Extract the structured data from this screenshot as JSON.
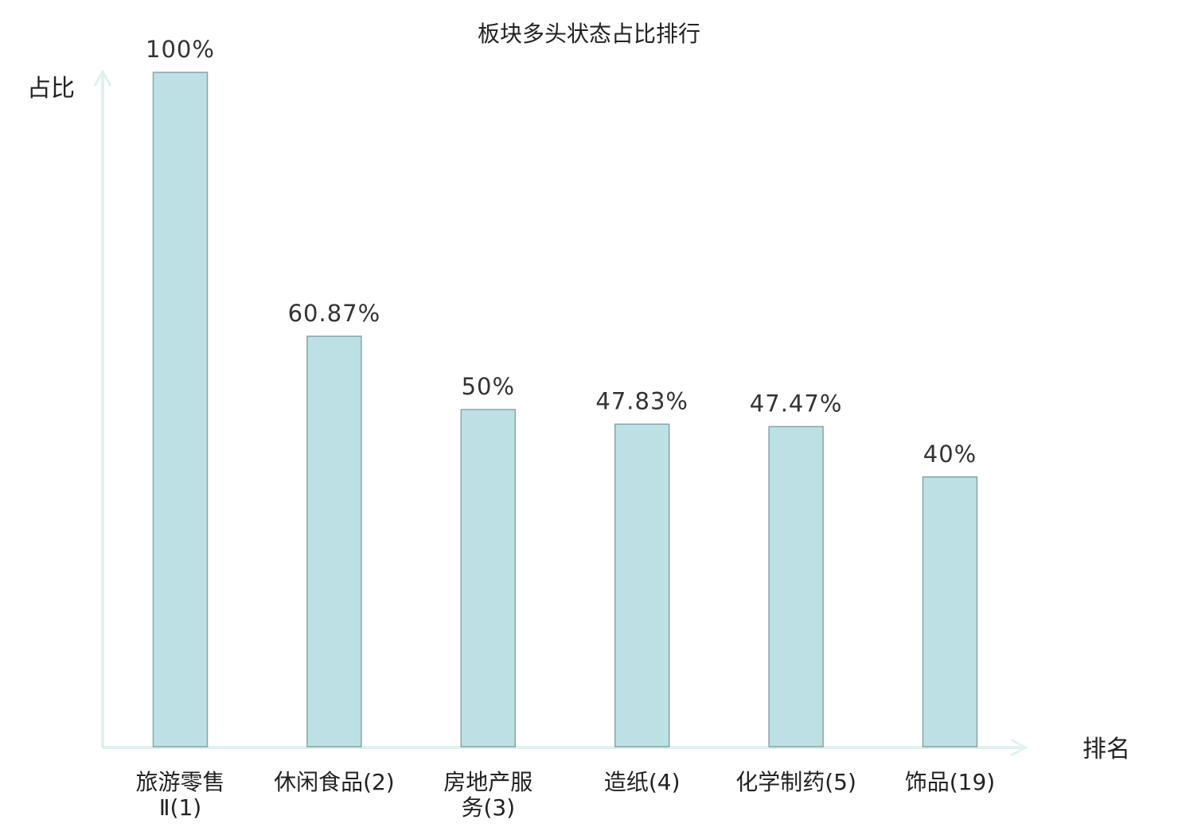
{
  "chart_data": {
    "type": "bar",
    "title": "板块多头状态占比排行",
    "ylabel": "占比",
    "xlabel": "排名",
    "ylim": [
      0,
      100
    ],
    "grid": false,
    "legend": "none",
    "categories": [
      {
        "name_lines": [
          "旅游零售",
          "Ⅱ"
        ],
        "rank": "(1)",
        "highlight": false
      },
      {
        "name_lines": [
          "休闲食品"
        ],
        "rank": "(2)",
        "highlight": false
      },
      {
        "name_lines": [
          "房地产服",
          "务"
        ],
        "rank": "(3)",
        "highlight": false
      },
      {
        "name_lines": [
          "造纸"
        ],
        "rank": "(4)",
        "highlight": false
      },
      {
        "name_lines": [
          "化学制药"
        ],
        "rank": "(5)",
        "highlight": false
      },
      {
        "name_lines": [
          "饰品"
        ],
        "rank": "(19)",
        "highlight": true
      }
    ],
    "values": [
      100,
      60.87,
      50,
      47.83,
      47.47,
      40
    ],
    "value_labels": [
      "100%",
      "60.87%",
      "50%",
      "47.83%",
      "47.47%",
      "40%"
    ]
  },
  "colors": {
    "bar_fill": "#bce0e3",
    "bar_stroke": "#8aa3a6",
    "axis": "#e0f1ef",
    "highlight_text": "#e01e1e",
    "text": "#222222"
  }
}
